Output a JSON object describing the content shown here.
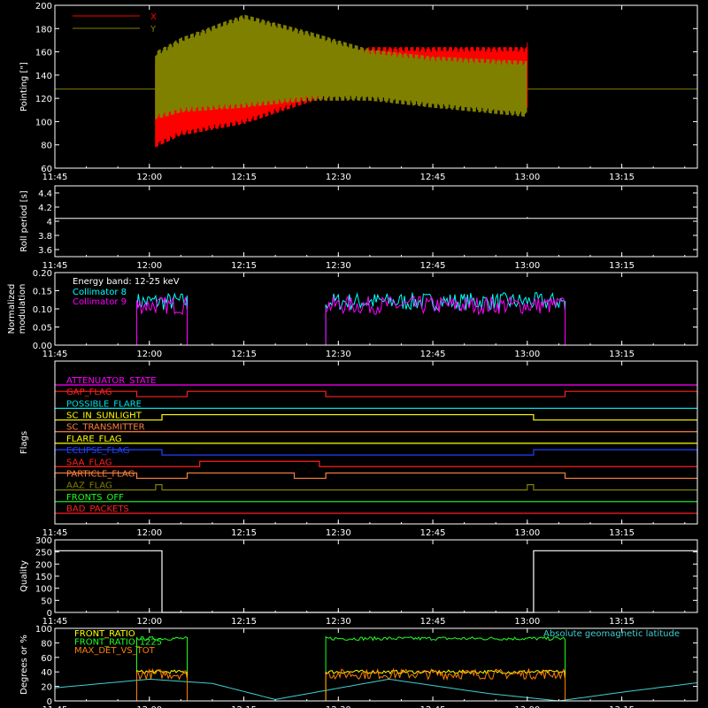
{
  "chart_data": [
    {
      "id": "pointing",
      "type": "line",
      "ylabel": "Pointing [\"]",
      "ylim": [
        60,
        200
      ],
      "yticks": [
        60,
        80,
        100,
        120,
        140,
        160,
        180,
        200
      ],
      "xtick_labels": [
        "11:45",
        "12:00",
        "12:15",
        "12:30",
        "12:45",
        "13:00",
        "13:15"
      ],
      "xlim": [
        "11:45",
        "13:27"
      ],
      "legend": "top-left",
      "series": [
        {
          "name": "X",
          "color": "#ff0000",
          "x": [
            "12:01",
            "12:05",
            "12:15",
            "12:25",
            "12:35",
            "12:45",
            "13:00"
          ],
          "ymin": [
            78,
            88,
            98,
            116,
            128,
            130,
            130
          ],
          "ymax": [
            150,
            150,
            150,
            156,
            164,
            164,
            164
          ]
        },
        {
          "name": "Y",
          "color": "#808000",
          "x": [
            "12:01",
            "12:05",
            "12:15",
            "12:25",
            "12:35",
            "12:45",
            "13:00"
          ],
          "ymin": [
            102,
            108,
            112,
            118,
            118,
            112,
            104
          ],
          "ymax": [
            160,
            172,
            192,
            178,
            162,
            156,
            152
          ]
        }
      ],
      "baseline": 128
    },
    {
      "id": "roll",
      "type": "line",
      "ylabel": "Roll period [s]",
      "ylim": [
        3.5,
        4.5
      ],
      "yticks": [
        3.6,
        3.8,
        4.0,
        4.2,
        4.4
      ],
      "xtick_labels": [
        "11:45",
        "12:00",
        "12:15",
        "12:30",
        "12:45",
        "13:00",
        "13:15"
      ],
      "series": [
        {
          "color": "#ffffff",
          "x": [
            "11:45",
            "13:27"
          ],
          "y": [
            4.04,
            4.04
          ]
        }
      ]
    },
    {
      "id": "modulation",
      "type": "line",
      "ylabel": [
        "Normalized",
        "modulation"
      ],
      "ylim": [
        0.0,
        0.2
      ],
      "yticks": [
        "0.00",
        "0.05",
        "0.10",
        "0.15",
        "0.20"
      ],
      "xtick_labels": [
        "11:45",
        "12:00",
        "12:15",
        "12:30",
        "12:45",
        "13:00",
        "13:15"
      ],
      "annotation": "Energy band: 12-25 keV",
      "series": [
        {
          "name": "Collimator 8",
          "color": "#00ffff",
          "intervals": [
            [
              "11:58",
              "12:06"
            ],
            [
              "12:28",
              "13:06"
            ]
          ],
          "level": 0.11
        },
        {
          "name": "Collimator 9",
          "color": "#ff00ff",
          "intervals": [
            [
              "11:58",
              "12:06"
            ],
            [
              "12:28",
              "13:06"
            ]
          ],
          "level": 0.1
        }
      ]
    },
    {
      "id": "flags",
      "type": "line",
      "ylabel": "Flags",
      "xtick_labels": [
        "11:45",
        "12:00",
        "12:15",
        "12:30",
        "12:45",
        "13:00",
        "13:15"
      ],
      "series": [
        {
          "name": "ATTENUATOR_STATE",
          "color": "#ff00ff",
          "high": []
        },
        {
          "name": "GAP_FLAG",
          "color": "#ff2020",
          "high": [
            [
              "11:45",
              "11:58"
            ],
            [
              "12:06",
              "12:28"
            ],
            [
              "13:06",
              "13:27"
            ]
          ]
        },
        {
          "name": "POSSIBLE_FLARE",
          "color": "#00e0e0",
          "high": []
        },
        {
          "name": "SC_IN_SUNLIGHT",
          "color": "#ffff00",
          "high": [
            [
              "12:02",
              "13:01"
            ]
          ]
        },
        {
          "name": "SC_TRANSMITTER",
          "color": "#ff8040",
          "high": []
        },
        {
          "name": "FLARE_FLAG",
          "color": "#ffff00",
          "high": []
        },
        {
          "name": "ECLIPSE_FLAG",
          "color": "#2040ff",
          "high": [
            [
              "11:45",
              "12:02"
            ],
            [
              "13:01",
              "13:27"
            ]
          ]
        },
        {
          "name": "SAA_FLAG",
          "color": "#ff2020",
          "high": [
            [
              "12:08",
              "12:27"
            ]
          ]
        },
        {
          "name": "PARTICLE_FLAG",
          "color": "#ff8040",
          "high": [
            [
              "11:45",
              "11:58"
            ],
            [
              "12:06",
              "12:23"
            ],
            [
              "12:28",
              "13:06"
            ]
          ]
        },
        {
          "name": "AAZ_FLAG",
          "color": "#808000",
          "high": [
            [
              "12:01",
              "12:02"
            ],
            [
              "13:00",
              "13:01"
            ]
          ]
        },
        {
          "name": "FRONTS_OFF",
          "color": "#20ff20",
          "high": []
        },
        {
          "name": "BAD_PACKETS",
          "color": "#ff2020",
          "high": []
        }
      ]
    },
    {
      "id": "quality",
      "type": "line",
      "ylabel": "Quality",
      "ylim": [
        0,
        300
      ],
      "yticks": [
        0,
        50,
        100,
        150,
        200,
        250,
        300
      ],
      "xtick_labels": [
        "11:45",
        "12:00",
        "12:15",
        "12:30",
        "12:45",
        "13:00",
        "13:15"
      ],
      "series": [
        {
          "color": "#ffffff",
          "x": [
            "11:45",
            "12:02",
            "12:02",
            "13:01",
            "13:01",
            "13:27"
          ],
          "y": [
            255,
            255,
            0,
            0,
            255,
            255
          ]
        }
      ]
    },
    {
      "id": "ratios",
      "type": "line",
      "ylabel": "Degrees or %",
      "ylim": [
        0,
        100
      ],
      "yticks": [
        0,
        20,
        40,
        60,
        80,
        100
      ],
      "xtick_labels": [
        "11:45",
        "12:00",
        "12:15",
        "12:30",
        "12:45",
        "13:00",
        "13:15"
      ],
      "series": [
        {
          "name": "FRONT_RATIO",
          "color": "#ffff00",
          "intervals": [
            [
              "11:58",
              "12:06"
            ],
            [
              "12:28",
              "13:06"
            ]
          ],
          "level": 40
        },
        {
          "name": "FRONT_RATIO_1225",
          "color": "#20ff20",
          "intervals": [
            [
              "11:58",
              "12:06"
            ],
            [
              "12:28",
              "13:06"
            ]
          ],
          "level": 86
        },
        {
          "name": "MAX_DET_VS_TOT",
          "color": "#ff8000",
          "intervals": [
            [
              "11:58",
              "12:06"
            ],
            [
              "12:28",
              "13:06"
            ]
          ],
          "level": 37
        },
        {
          "name": "Absolute geomagnetic latitude",
          "color": "#40d0d0",
          "x": [
            "11:45",
            "12:00",
            "12:10",
            "12:20",
            "12:38",
            "12:54",
            "13:05",
            "13:15",
            "13:27"
          ],
          "y": [
            18,
            30,
            24,
            2,
            30,
            10,
            0,
            12,
            25
          ]
        }
      ]
    }
  ]
}
